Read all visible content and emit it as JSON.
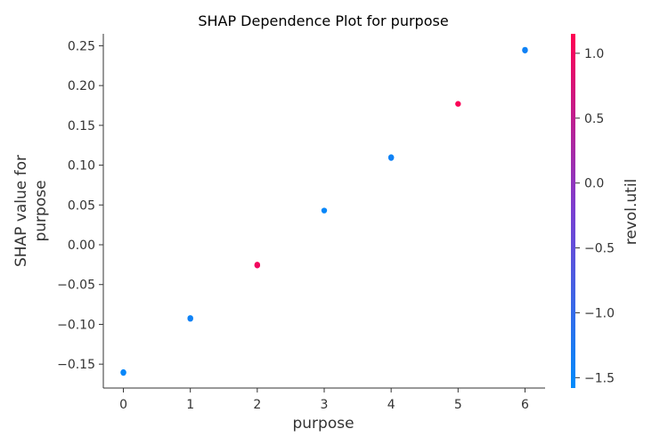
{
  "chart_data": {
    "type": "scatter",
    "title": "SHAP Dependence Plot for purpose",
    "xlabel": "purpose",
    "ylabel_lines": [
      "SHAP value for",
      "purpose"
    ],
    "xlim": [
      -0.3,
      6.3
    ],
    "ylim": [
      -0.18,
      0.265
    ],
    "xticks": [
      0,
      1,
      2,
      3,
      4,
      5,
      6
    ],
    "yticks": [
      -0.15,
      -0.1,
      -0.05,
      0.0,
      0.05,
      0.1,
      0.15,
      0.2,
      0.25
    ],
    "ytick_labels": [
      "−0.15",
      "−0.10",
      "−0.05",
      "0.00",
      "0.05",
      "0.10",
      "0.15",
      "0.20",
      "0.25"
    ],
    "points": [
      {
        "x": 0,
        "y": -0.16,
        "color_value": -1.5
      },
      {
        "x": 0,
        "y": -0.161,
        "color_value": -1.5
      },
      {
        "x": 1,
        "y": -0.092,
        "color_value": -1.5
      },
      {
        "x": 1,
        "y": -0.093,
        "color_value": -1.4
      },
      {
        "x": 2,
        "y": -0.025,
        "color_value": 1.1
      },
      {
        "x": 2,
        "y": -0.026,
        "color_value": 1.0
      },
      {
        "x": 3,
        "y": 0.043,
        "color_value": -1.5
      },
      {
        "x": 4,
        "y": 0.11,
        "color_value": -1.5
      },
      {
        "x": 4,
        "y": 0.109,
        "color_value": -1.4
      },
      {
        "x": 5,
        "y": 0.177,
        "color_value": 1.1
      },
      {
        "x": 6,
        "y": 0.245,
        "color_value": -1.5
      },
      {
        "x": 6,
        "y": 0.244,
        "color_value": -1.4
      }
    ],
    "colorbar": {
      "label": "revol.util",
      "range": [
        -1.58,
        1.15
      ],
      "ticks": [
        1.0,
        0.5,
        0.0,
        -0.5,
        -1.0,
        -1.5
      ],
      "tick_labels": [
        "1.0",
        "0.5",
        "0.0",
        "−0.5",
        "−1.0",
        "−1.5"
      ],
      "color_low": "#008bfb",
      "color_high": "#ff0051",
      "color_mid": "#7a3fd1"
    },
    "grid": false
  }
}
